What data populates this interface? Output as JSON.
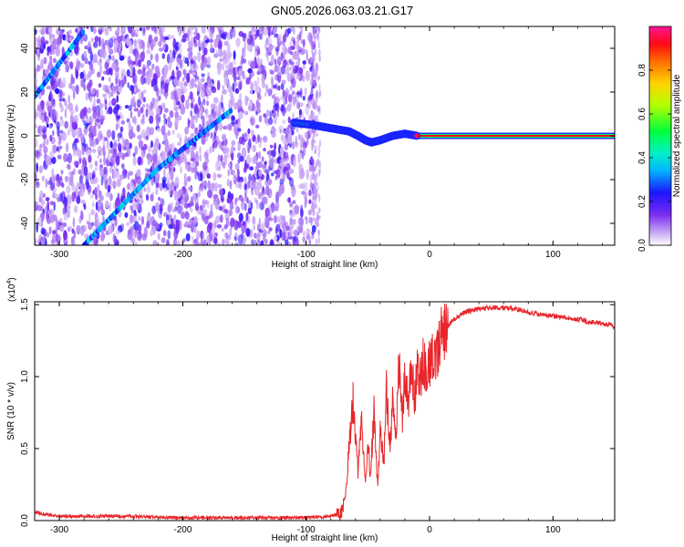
{
  "title": "GN05.2026.063.03.21.G17",
  "colors": {
    "snr_line": "#e8252a",
    "tone_line": "#e8252a",
    "colormap": [
      "#ffffff",
      "#b58df0",
      "#6a1ef0",
      "#1414ff",
      "#00d8ff",
      "#00ff40",
      "#c8ff00",
      "#ff8c00",
      "#ff0000",
      "#ff1493"
    ]
  },
  "chart_data": [
    {
      "type": "heatmap",
      "title": "GN05.2026.063.03.21.G17",
      "xlabel": "Height of straight line (km)",
      "ylabel": "Frequency (Hz)",
      "xlim": [
        -320,
        150
      ],
      "ylim": [
        -50,
        50
      ],
      "xticks": [
        -300,
        -200,
        -100,
        0,
        100
      ],
      "yticks": [
        -40,
        -20,
        0,
        20,
        40
      ],
      "xtick_labels": [
        "-300",
        "-200",
        "-100",
        "0",
        "100"
      ],
      "ytick_labels": [
        "-40",
        "-20",
        "0",
        "20",
        "40"
      ],
      "noise_region_x": [
        -320,
        -93
      ],
      "main_tone": [
        {
          "x": -110,
          "y": 6
        },
        {
          "x": -95,
          "y": 5
        },
        {
          "x": -85,
          "y": 4
        },
        {
          "x": -75,
          "y": 3
        },
        {
          "x": -65,
          "y": 2
        },
        {
          "x": -58,
          "y": 0
        },
        {
          "x": -52,
          "y": -2
        },
        {
          "x": -47,
          "y": -3
        },
        {
          "x": -40,
          "y": -2
        },
        {
          "x": -30,
          "y": 0
        },
        {
          "x": -20,
          "y": 1
        },
        {
          "x": -10,
          "y": 0
        },
        {
          "x": 150,
          "y": 0
        }
      ],
      "diagonal_feature_1": [
        {
          "x": -320,
          "y": 18
        },
        {
          "x": -280,
          "y": 48
        }
      ],
      "diagonal_feature_2": [
        {
          "x": -280,
          "y": -50
        },
        {
          "x": -220,
          "y": -15
        },
        {
          "x": -160,
          "y": 12
        }
      ],
      "colorbar": {
        "label": "Normalized spectral amplitude",
        "range": [
          0,
          1
        ],
        "ticks": [
          0.0,
          0.2,
          0.4,
          0.6,
          0.8
        ],
        "tick_labels": [
          "0.0",
          "0.2",
          "0.4",
          "0.6",
          "0.8"
        ]
      }
    },
    {
      "type": "line",
      "xlabel": "Height of straight line (km)",
      "ylabel": "SNR (10 * v/v)",
      "yscale_label": "(x10",
      "yscale_exponent": "4",
      "xlim": [
        -320,
        150
      ],
      "ylim": [
        0,
        1.52
      ],
      "xticks": [
        -300,
        -200,
        -100,
        0,
        100
      ],
      "yticks": [
        0.0,
        0.5,
        1.0,
        1.5
      ],
      "xtick_labels": [
        "-300",
        "-200",
        "-100",
        "0",
        "100"
      ],
      "ytick_labels": [
        "0.0",
        "0.5",
        "1.0",
        "1.5"
      ],
      "series": [
        {
          "x": [
            -320,
            -310,
            -300,
            -280,
            -250,
            -200,
            -150,
            -100,
            -80,
            -72,
            -68,
            -65,
            -62,
            -58,
            -55,
            -52,
            -50,
            -48,
            -45,
            -42,
            -40,
            -37,
            -35,
            -32,
            -30,
            -27,
            -25,
            -22,
            -20,
            -17,
            -15,
            -12,
            -10,
            -7,
            -5,
            -2,
            0,
            5,
            10,
            15,
            20,
            25,
            30,
            40,
            50,
            60,
            70,
            80,
            90,
            100,
            110,
            120,
            130,
            140,
            150
          ],
          "y": [
            0.06,
            0.04,
            0.03,
            0.03,
            0.03,
            0.02,
            0.02,
            0.02,
            0.03,
            0.05,
            0.15,
            0.55,
            0.82,
            0.35,
            0.7,
            0.25,
            0.58,
            0.3,
            0.75,
            0.22,
            0.6,
            0.4,
            0.95,
            0.5,
            0.82,
            0.6,
            1.12,
            0.7,
            1.05,
            0.75,
            1.1,
            0.85,
            1.1,
            0.95,
            1.12,
            1.0,
            1.08,
            1.18,
            1.28,
            1.35,
            1.4,
            1.43,
            1.45,
            1.47,
            1.48,
            1.48,
            1.47,
            1.45,
            1.43,
            1.42,
            1.41,
            1.4,
            1.38,
            1.37,
            1.35
          ]
        }
      ]
    }
  ]
}
